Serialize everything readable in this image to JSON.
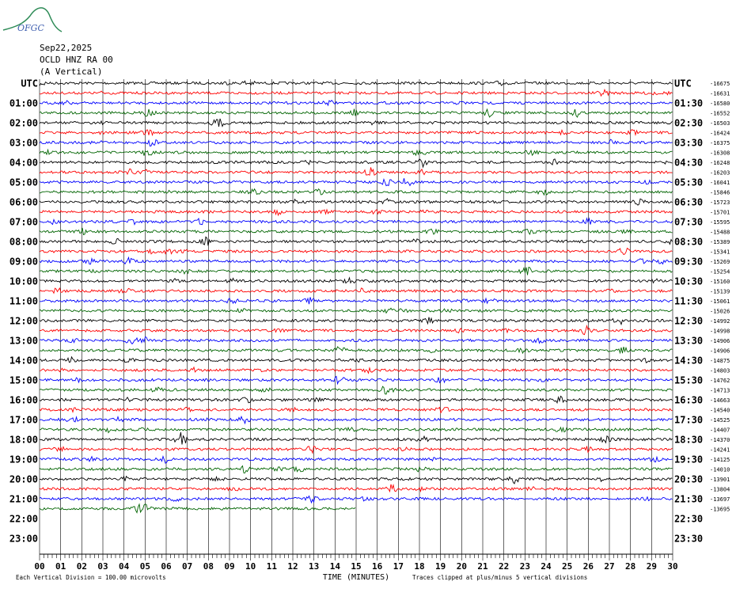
{
  "chart_data": {
    "type": "helicorder",
    "logo": "OFGC",
    "title": "Sep22,2025",
    "station": "OCLD HNZ RA 00",
    "component": "(A Vertical)",
    "row_labels_left": [
      "UTC",
      "01:00",
      "02:00",
      "03:00",
      "04:00",
      "05:00",
      "06:00",
      "07:00",
      "08:00",
      "09:00",
      "10:00",
      "11:00",
      "12:00",
      "13:00",
      "14:00",
      "15:00",
      "16:00",
      "17:00",
      "18:00",
      "19:00",
      "20:00",
      "21:00",
      "22:00",
      "23:00"
    ],
    "row_labels_right": [
      "UTC",
      "01:30",
      "02:30",
      "03:30",
      "04:30",
      "05:30",
      "06:30",
      "07:30",
      "08:30",
      "09:30",
      "10:30",
      "11:30",
      "12:30",
      "13:30",
      "14:30",
      "15:30",
      "16:30",
      "17:30",
      "18:30",
      "19:30",
      "20:30",
      "21:30",
      "22:30",
      "23:30"
    ],
    "trace_offsets": [
      -16675,
      -16631,
      -16580,
      -16552,
      -16503,
      -16424,
      -16375,
      -16308,
      -16248,
      -16203,
      -16041,
      -15846,
      -15723,
      -15701,
      -15595,
      -15488,
      -15389,
      -15341,
      -15269,
      -15254,
      -15160,
      -15139,
      -15061,
      -15026,
      -14992,
      -14998,
      -14906,
      -14906,
      -14875,
      -14803,
      -14762,
      -14713,
      -14663,
      -14540,
      -14525,
      -14407,
      -14370,
      -14241,
      -14125,
      -14010,
      -13901,
      -13804,
      -13697,
      -13695
    ],
    "trace_colors": [
      "#000000",
      "#ff0000",
      "#0000ff",
      "#006400"
    ],
    "xlim": [
      0,
      30
    ],
    "xticks": [
      {
        "value": 0,
        "label": "00"
      },
      {
        "value": 1,
        "label": "01"
      },
      {
        "value": 2,
        "label": "02"
      },
      {
        "value": 3,
        "label": "03"
      },
      {
        "value": 4,
        "label": "04"
      },
      {
        "value": 5,
        "label": "05"
      },
      {
        "value": 6,
        "label": "06"
      },
      {
        "value": 7,
        "label": "07"
      },
      {
        "value": 8,
        "label": "08"
      },
      {
        "value": 9,
        "label": "09"
      },
      10,
      11,
      12,
      13,
      14,
      15,
      16,
      17,
      18,
      19,
      20,
      21,
      22,
      23,
      24,
      25,
      26,
      27,
      28,
      29,
      30
    ],
    "xlabel": "TIME (MINUTES)",
    "footnote_left": "Each Vertical Division =  100.00 microvolts",
    "footnote_right": "Traces clipped at plus/minus 5 vertical divisions"
  }
}
